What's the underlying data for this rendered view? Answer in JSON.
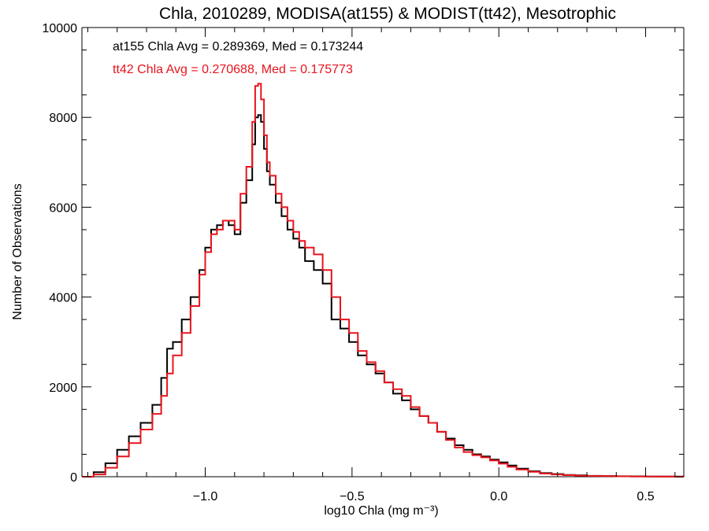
{
  "chart_data": {
    "type": "line",
    "step": true,
    "title": "Chla, 2010289, MODISA(at155) & MODIST(tt42), Mesotrophic",
    "xlabel": "log10 Chla (mg m⁻³)",
    "ylabel": "Number of Observations",
    "xlim": [
      -1.42,
      0.63
    ],
    "ylim": [
      0,
      10000
    ],
    "xticks": [
      -1.0,
      -0.5,
      0.0,
      0.5
    ],
    "xtick_labels": [
      "−1.0",
      "−0.5",
      "0.0",
      "0.5"
    ],
    "yticks": [
      0,
      2000,
      4000,
      6000,
      8000,
      10000
    ],
    "ytick_labels": [
      "0",
      "2000",
      "4000",
      "6000",
      "8000",
      "10000"
    ],
    "grid": false,
    "annotations": [
      {
        "text": "at155 Chla Avg = 0.289369, Med = 0.173244",
        "color": "#000000"
      },
      {
        "text": "tt42 Chla Avg = 0.270688, Med = 0.175773",
        "color": "#e8141c"
      }
    ],
    "series": [
      {
        "name": "at155",
        "color": "#000000",
        "x": [
          -1.42,
          -1.38,
          -1.34,
          -1.3,
          -1.26,
          -1.22,
          -1.18,
          -1.15,
          -1.13,
          -1.11,
          -1.08,
          -1.05,
          -1.02,
          -1.0,
          -0.98,
          -0.96,
          -0.94,
          -0.92,
          -0.9,
          -0.88,
          -0.86,
          -0.84,
          -0.83,
          -0.82,
          -0.81,
          -0.8,
          -0.79,
          -0.78,
          -0.76,
          -0.74,
          -0.72,
          -0.7,
          -0.68,
          -0.66,
          -0.63,
          -0.6,
          -0.57,
          -0.54,
          -0.51,
          -0.48,
          -0.45,
          -0.42,
          -0.39,
          -0.36,
          -0.33,
          -0.3,
          -0.27,
          -0.24,
          -0.21,
          -0.18,
          -0.15,
          -0.12,
          -0.09,
          -0.06,
          -0.03,
          0.0,
          0.03,
          0.06,
          0.1,
          0.14,
          0.18,
          0.22,
          0.26,
          0.3,
          0.35,
          0.4,
          0.45,
          0.5,
          0.55,
          0.6,
          0.63
        ],
        "y": [
          0,
          100,
          300,
          600,
          900,
          1200,
          1600,
          2200,
          2850,
          3000,
          3500,
          4000,
          4600,
          5100,
          5500,
          5600,
          5700,
          5600,
          5400,
          6100,
          6600,
          7400,
          8000,
          8050,
          7900,
          7300,
          6800,
          6500,
          6100,
          5800,
          5500,
          5300,
          5100,
          4800,
          4600,
          4300,
          3500,
          3300,
          3000,
          2700,
          2500,
          2300,
          2100,
          1850,
          1700,
          1500,
          1350,
          1200,
          1000,
          850,
          700,
          600,
          500,
          450,
          380,
          320,
          250,
          180,
          120,
          80,
          60,
          40,
          30,
          20,
          15,
          10,
          8,
          5,
          3,
          2,
          0
        ]
      },
      {
        "name": "tt42",
        "color": "#e8141c",
        "x": [
          -1.42,
          -1.38,
          -1.34,
          -1.3,
          -1.26,
          -1.22,
          -1.18,
          -1.15,
          -1.13,
          -1.11,
          -1.08,
          -1.05,
          -1.02,
          -1.0,
          -0.98,
          -0.96,
          -0.94,
          -0.92,
          -0.9,
          -0.88,
          -0.86,
          -0.84,
          -0.83,
          -0.82,
          -0.81,
          -0.8,
          -0.79,
          -0.78,
          -0.76,
          -0.74,
          -0.72,
          -0.7,
          -0.68,
          -0.66,
          -0.63,
          -0.6,
          -0.57,
          -0.54,
          -0.51,
          -0.48,
          -0.45,
          -0.42,
          -0.39,
          -0.36,
          -0.33,
          -0.3,
          -0.27,
          -0.24,
          -0.21,
          -0.18,
          -0.15,
          -0.12,
          -0.09,
          -0.06,
          -0.03,
          0.0,
          0.03,
          0.06,
          0.1,
          0.14,
          0.18,
          0.22,
          0.26,
          0.3,
          0.35,
          0.4,
          0.45,
          0.5,
          0.55,
          0.6,
          0.63
        ],
        "y": [
          0,
          50,
          200,
          450,
          750,
          1050,
          1400,
          1800,
          2300,
          2700,
          3200,
          3800,
          4500,
          5000,
          5400,
          5500,
          5700,
          5700,
          5500,
          6300,
          6900,
          7900,
          8700,
          8750,
          8400,
          7600,
          7000,
          6700,
          6300,
          6000,
          5700,
          5450,
          5250,
          5100,
          4950,
          4600,
          4000,
          3500,
          3200,
          2800,
          2550,
          2350,
          2100,
          1950,
          1800,
          1550,
          1350,
          1200,
          1000,
          820,
          650,
          550,
          480,
          430,
          360,
          290,
          220,
          160,
          110,
          70,
          50,
          35,
          25,
          18,
          12,
          8,
          6,
          4,
          2,
          1,
          0
        ]
      }
    ]
  }
}
